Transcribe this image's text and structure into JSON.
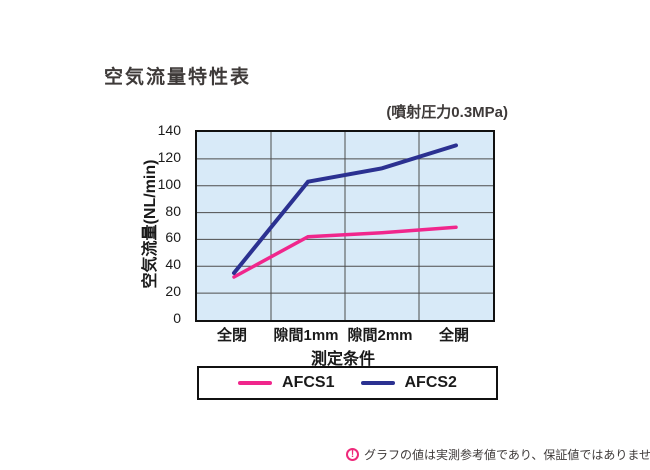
{
  "header": {
    "title": "空気流量特性表",
    "subtitle": "(噴射圧力0.3MPa)"
  },
  "chart_data": {
    "type": "line",
    "title": "空気流量特性表",
    "subtitle": "(噴射圧力0.3MPa)",
    "categories": [
      "全閉",
      "隙間1mm",
      "隙間2mm",
      "全開"
    ],
    "series": [
      {
        "name": "AFCS1",
        "color": "#f0268c",
        "values": [
          32,
          62,
          65,
          69
        ]
      },
      {
        "name": "AFCS2",
        "color": "#2b3191",
        "values": [
          35,
          103,
          113,
          130
        ]
      }
    ],
    "xlabel": "測定条件",
    "ylabel": "空気流量(NL/min)",
    "ylim": [
      0,
      140
    ],
    "ytick_step": 20,
    "grid": "both",
    "grid_color": "#4d4d4d",
    "plot_bg": "#d8eaf8",
    "legend_position": "bottom"
  },
  "footnote": {
    "icon": "alert-circle-icon",
    "icon_color": "#ee2a7b",
    "text": "グラフの値は実測参考値であり、保証値ではありません。"
  }
}
